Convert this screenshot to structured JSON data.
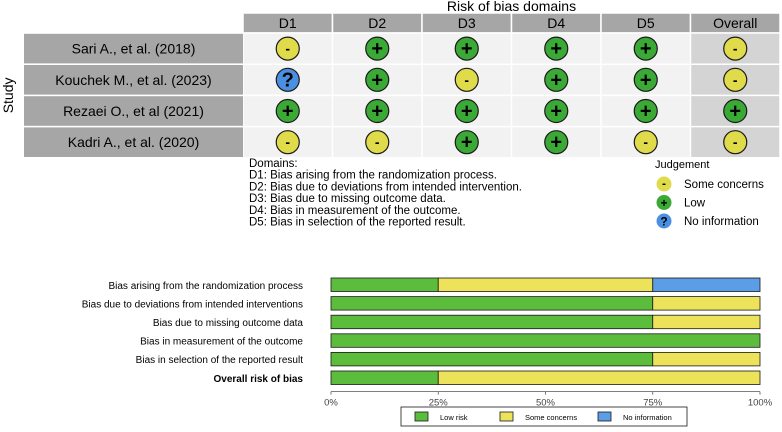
{
  "chart_data": [
    {
      "type": "table",
      "title": "Risk of bias domains",
      "row_axis_label": "Study",
      "columns": [
        "D1",
        "D2",
        "D3",
        "D4",
        "D5",
        "Overall"
      ],
      "rows": [
        {
          "study": "Sari A., et al. (2018)",
          "judgements": [
            "some",
            "low",
            "low",
            "low",
            "low",
            "some"
          ]
        },
        {
          "study": "Kouchek M., et al. (2023)",
          "judgements": [
            "noinfo",
            "low",
            "some",
            "low",
            "low",
            "some"
          ]
        },
        {
          "study": "Rezaei O., et al (2021)",
          "judgements": [
            "low",
            "low",
            "low",
            "low",
            "low",
            "low"
          ]
        },
        {
          "study": "Kadri A., et al. (2020)",
          "judgements": [
            "some",
            "some",
            "low",
            "low",
            "some",
            "some"
          ]
        }
      ],
      "domains_heading": "Domains:",
      "domain_notes": [
        "D1: Bias arising from the randomization process.",
        "D2: Bias due to deviations from intended intervention.",
        "D3: Bias due to missing outcome data.",
        "D4: Bias in measurement of the outcome.",
        "D5: Bias in selection of the reported result."
      ],
      "judgement_legend_title": "Judgement",
      "judgement_legend": [
        {
          "key": "some",
          "symbol": "-",
          "label": "Some concerns",
          "color": "#e0db4a"
        },
        {
          "key": "low",
          "symbol": "+",
          "label": "Low",
          "color": "#3aa935"
        },
        {
          "key": "noinfo",
          "symbol": "?",
          "label": "No information",
          "color": "#4a90e2"
        }
      ]
    },
    {
      "type": "bar",
      "orientation": "horizontal",
      "stacked": true,
      "categories": [
        "Bias arising from the randomization process",
        "Bias due to deviations from intended interventions",
        "Bias due to missing outcome data",
        "Bias in measurement of the outcome",
        "Bias in selection of the reported result",
        "Overall risk of bias"
      ],
      "bold_category": "Overall risk of bias",
      "series": [
        {
          "name": "Low risk",
          "color": "#5cbc3c",
          "values": [
            25,
            75,
            75,
            100,
            75,
            25
          ]
        },
        {
          "name": "Some concerns",
          "color": "#ece35a",
          "values": [
            50,
            25,
            25,
            0,
            25,
            75
          ]
        },
        {
          "name": "No information",
          "color": "#5b9de6",
          "values": [
            25,
            0,
            0,
            0,
            0,
            0
          ]
        }
      ],
      "xlim": [
        0,
        100
      ],
      "xticks": [
        "0%",
        "25%",
        "50%",
        "75%",
        "100%"
      ],
      "legend_position": "bottom"
    }
  ]
}
